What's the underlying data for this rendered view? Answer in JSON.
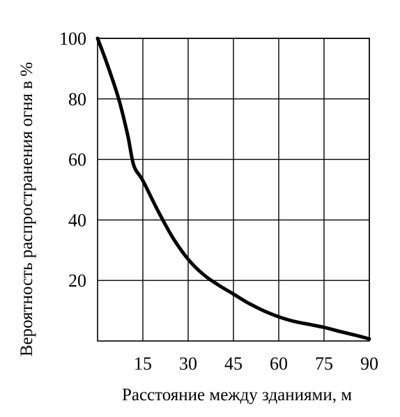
{
  "chart_data": {
    "type": "line",
    "xlabel": "Расстояние между зданиями, м",
    "ylabel": "Вероятность  распространения  огня в %",
    "xlim": [
      0,
      90
    ],
    "ylim": [
      0,
      100
    ],
    "x_ticks": [
      15,
      30,
      45,
      60,
      75,
      90
    ],
    "y_ticks": [
      20,
      40,
      60,
      80,
      100
    ],
    "grid": true,
    "line_color": "#000000",
    "series": [
      {
        "x": [
          0,
          3,
          7,
          10,
          12,
          15,
          20,
          25,
          30,
          35,
          40,
          45,
          50,
          55,
          60,
          65,
          70,
          75,
          80,
          85,
          90
        ],
        "values": [
          100,
          92,
          80,
          68,
          58,
          53,
          43,
          34,
          27,
          22,
          18.5,
          15.5,
          12.5,
          10,
          8,
          6.5,
          5.5,
          4.5,
          3.2,
          2,
          0.7
        ]
      }
    ]
  }
}
